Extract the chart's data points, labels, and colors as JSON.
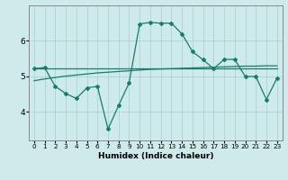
{
  "xlabel": "Humidex (Indice chaleur)",
  "background_color": "#ceeaea",
  "grid_color": "#a8d4d4",
  "line_color": "#1a7a6e",
  "x": [
    0,
    1,
    2,
    3,
    4,
    5,
    6,
    7,
    8,
    9,
    10,
    11,
    12,
    13,
    14,
    15,
    16,
    17,
    18,
    19,
    20,
    21,
    22,
    23
  ],
  "series1": [
    5.22,
    5.22,
    5.22,
    5.22,
    5.22,
    5.22,
    5.22,
    5.22,
    5.22,
    5.22,
    5.22,
    5.22,
    5.22,
    5.22,
    5.22,
    5.22,
    5.22,
    5.22,
    5.22,
    5.22,
    5.22,
    5.22,
    5.22,
    5.22
  ],
  "series2": [
    4.88,
    4.93,
    4.97,
    5.01,
    5.04,
    5.07,
    5.1,
    5.12,
    5.14,
    5.16,
    5.18,
    5.2,
    5.21,
    5.22,
    5.23,
    5.24,
    5.25,
    5.26,
    5.27,
    5.28,
    5.29,
    5.29,
    5.3,
    5.3
  ],
  "series3": [
    5.22,
    5.25,
    4.72,
    4.52,
    4.38,
    4.68,
    4.72,
    3.52,
    4.18,
    4.82,
    6.48,
    6.52,
    6.5,
    6.5,
    6.2,
    5.7,
    5.47,
    5.22,
    5.48,
    5.48,
    5.0,
    5.0,
    4.35,
    4.95
  ],
  "ylim": [
    3.2,
    7.0
  ],
  "yticks": [
    4,
    5,
    6
  ],
  "xticks": [
    0,
    1,
    2,
    3,
    4,
    5,
    6,
    7,
    8,
    9,
    10,
    11,
    12,
    13,
    14,
    15,
    16,
    17,
    18,
    19,
    20,
    21,
    22,
    23
  ]
}
